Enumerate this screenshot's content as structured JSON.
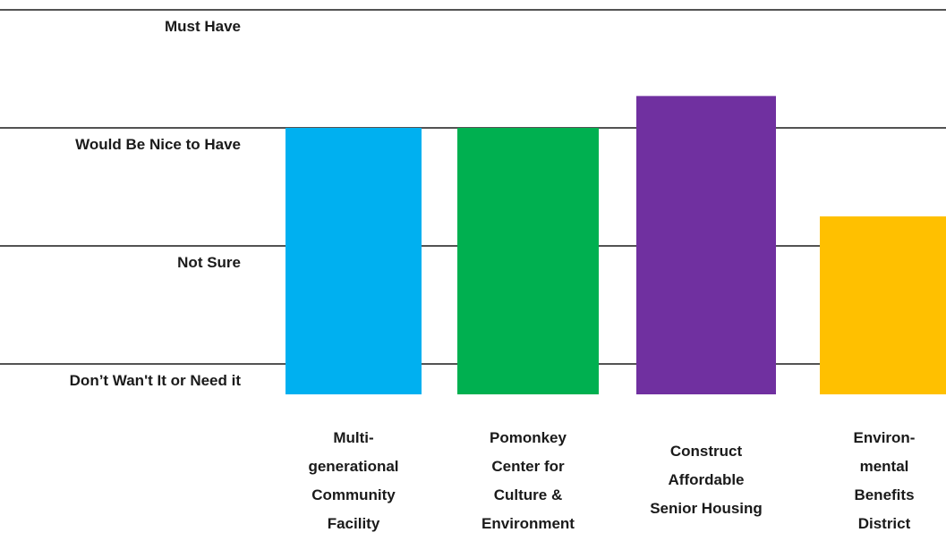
{
  "chart_data": {
    "type": "bar",
    "title": "",
    "xlabel": "",
    "ylabel": "",
    "ylim": [
      0,
      3
    ],
    "y_levels": [
      {
        "value": 3,
        "label": "Must Have"
      },
      {
        "value": 2,
        "label": "Would Be Nice to Have"
      },
      {
        "value": 1,
        "label": "Not Sure"
      },
      {
        "value": 0,
        "label": "Don’t Wan't It or Need it"
      }
    ],
    "grid": true,
    "legend": "none",
    "categories": [
      {
        "label_lines": [
          "Multi-",
          "generational",
          "Community",
          "Facility"
        ]
      },
      {
        "label_lines": [
          "Pomonkey",
          "Center for",
          "Culture &",
          "Environment"
        ]
      },
      {
        "label_lines": [
          "Construct",
          "Affordable",
          "Senior Housing"
        ]
      },
      {
        "label_lines": [
          "Environ-",
          "mental",
          "Benefits",
          "District"
        ]
      }
    ],
    "values": [
      2.0,
      2.0,
      2.27,
      1.25
    ],
    "colors": [
      "#00B0F0",
      "#00B050",
      "#7030A0",
      "#FFC000"
    ]
  }
}
